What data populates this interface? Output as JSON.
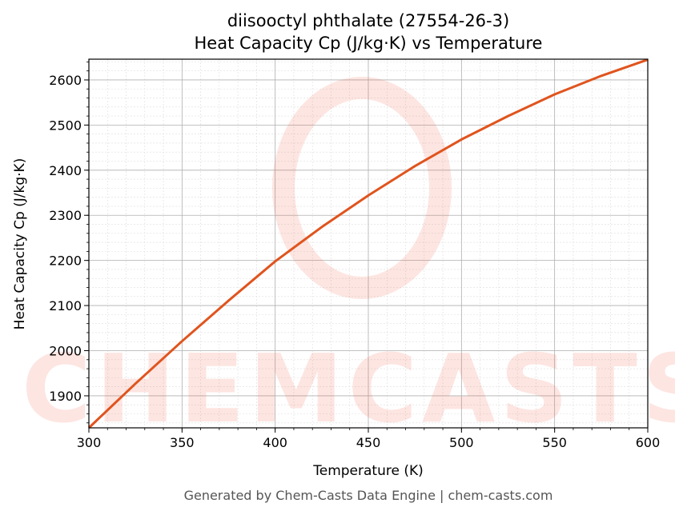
{
  "chart_data": {
    "type": "line",
    "title": "diisooctyl phthalate (27554-26-3)",
    "subtitle": "Heat Capacity Cp (J/kg·K) vs Temperature",
    "xlabel": "Temperature (K)",
    "ylabel": "Heat Capacity Cp (J/kg·K)",
    "xlim": [
      300,
      600
    ],
    "ylim": [
      1829,
      2646
    ],
    "xticks": [
      300,
      350,
      400,
      450,
      500,
      550,
      600
    ],
    "yticks": [
      1900,
      2000,
      2100,
      2200,
      2300,
      2400,
      2500,
      2600
    ],
    "grid": true,
    "series": [
      {
        "color": "#e0541e",
        "x": [
          300,
          325,
          350,
          375,
          400,
          425,
          450,
          475,
          500,
          525,
          550,
          575,
          600
        ],
        "y": [
          1829,
          1927,
          2021,
          2111,
          2198,
          2274,
          2344,
          2409,
          2468,
          2520,
          2568,
          2609,
          2645
        ]
      }
    ],
    "watermark": "CHEMCASTS",
    "footer": "Generated by Chem-Casts Data Engine | chem-casts.com"
  }
}
